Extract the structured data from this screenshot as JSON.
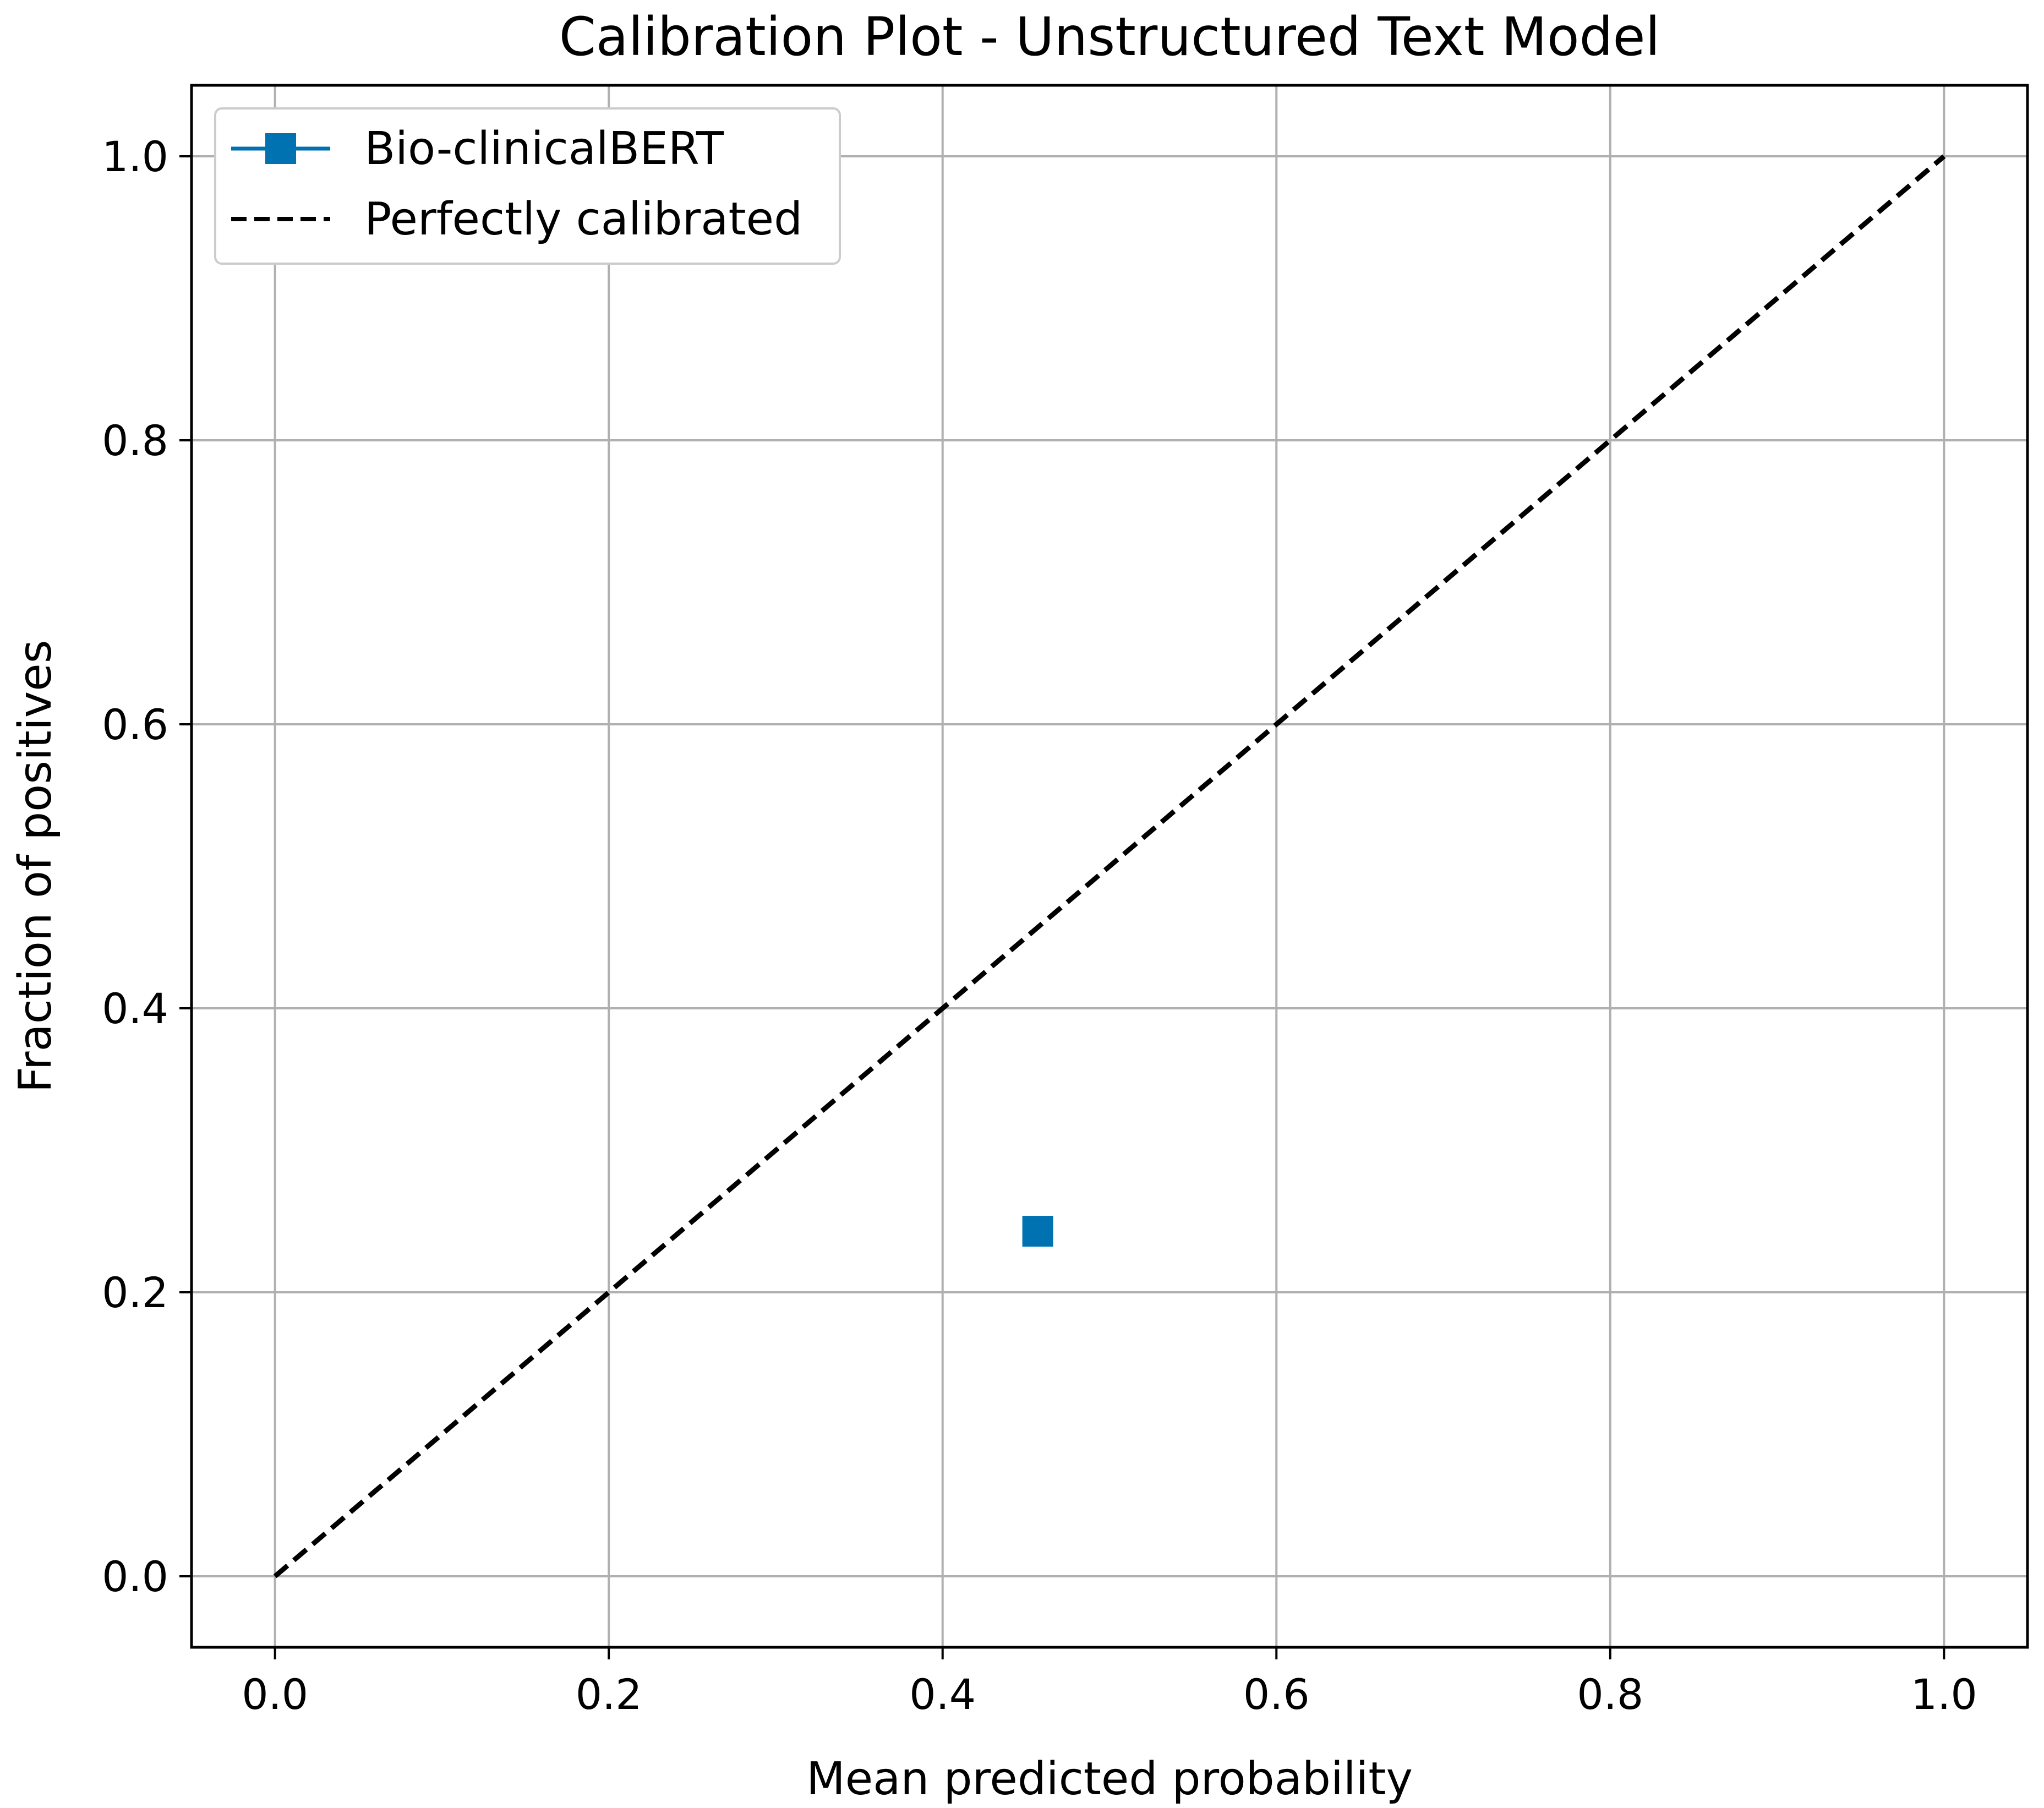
{
  "chart_data": {
    "type": "scatter",
    "title": "Calibration Plot - Unstructured Text Model",
    "xlabel": "Mean predicted probability",
    "ylabel": "Fraction of positives",
    "xlim": [
      -0.05,
      1.05
    ],
    "ylim": [
      -0.05,
      1.05
    ],
    "x_ticks": [
      0.0,
      0.2,
      0.4,
      0.6,
      0.8,
      1.0
    ],
    "y_ticks": [
      0.0,
      0.2,
      0.4,
      0.6,
      0.8,
      1.0
    ],
    "x_tick_labels": [
      "0.0",
      "0.2",
      "0.4",
      "0.6",
      "0.8",
      "1.0"
    ],
    "y_tick_labels": [
      "0.0",
      "0.2",
      "0.4",
      "0.6",
      "0.8",
      "1.0"
    ],
    "grid": true,
    "legend_position": "top-left",
    "series": [
      {
        "name": "Bio-clinicalBERT",
        "marker": "square",
        "line": "solid",
        "color": "#0072B2",
        "points": [
          {
            "x": 0.457,
            "y": 0.243
          }
        ]
      },
      {
        "name": "Perfectly calibrated",
        "marker": "none",
        "line": "dashed",
        "color": "#000000",
        "points": [
          {
            "x": 0.0,
            "y": 0.0
          },
          {
            "x": 1.0,
            "y": 1.0
          }
        ]
      }
    ]
  }
}
